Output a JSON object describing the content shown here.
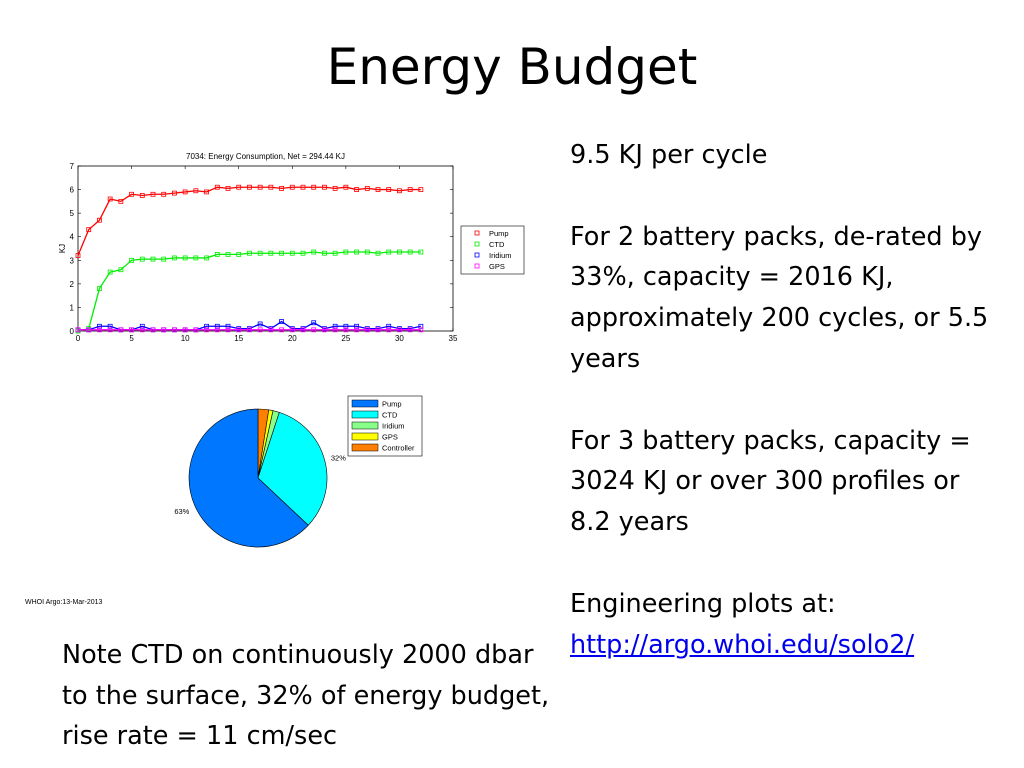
{
  "slide": {
    "title": "Energy Budget",
    "stamp": "WHOI Argo:13-Mar-2013",
    "right_text": {
      "line1": "9.5 KJ per cycle",
      "line2": "For 2 battery packs, de-rated by 33%, capacity = 2016 KJ, approximately 200 cycles, or 5.5 years",
      "line3": "For 3 battery packs, capacity = 3024 KJ or over 300 profiles or 8.2 years",
      "line4": "Engineering plots at:",
      "link": "http://argo.whoi.edu/solo2/"
    },
    "note_text": "Note CTD on continuously 2000 dbar to the surface, 32% of energy budget, rise rate = 11 cm/sec"
  },
  "chart_data": [
    {
      "type": "line",
      "title": "7034: Energy Consumption,  Net = 294.44 KJ",
      "xlabel": "",
      "ylabel": "KJ",
      "xlim": [
        0,
        35
      ],
      "ylim": [
        0,
        7
      ],
      "xticks": [
        0,
        5,
        10,
        15,
        20,
        25,
        30,
        35
      ],
      "yticks": [
        0,
        1,
        2,
        3,
        4,
        5,
        6,
        7
      ],
      "grid": false,
      "legend_position": "right",
      "x": [
        0,
        1,
        2,
        3,
        4,
        5,
        6,
        7,
        8,
        9,
        10,
        11,
        12,
        13,
        14,
        15,
        16,
        17,
        18,
        19,
        20,
        21,
        22,
        23,
        24,
        25,
        26,
        27,
        28,
        29,
        30,
        31,
        32
      ],
      "series": [
        {
          "name": "Pump",
          "color": "#ff0000",
          "values": [
            3.2,
            4.3,
            4.7,
            5.6,
            5.5,
            5.8,
            5.75,
            5.8,
            5.8,
            5.85,
            5.9,
            5.95,
            5.9,
            6.1,
            6.05,
            6.1,
            6.1,
            6.1,
            6.1,
            6.05,
            6.1,
            6.1,
            6.1,
            6.1,
            6.05,
            6.1,
            6.0,
            6.05,
            6.0,
            6.0,
            5.95,
            6.0,
            6.0
          ]
        },
        {
          "name": "CTD",
          "color": "#00ee00",
          "values": [
            0.0,
            0.1,
            1.8,
            2.5,
            2.6,
            3.0,
            3.05,
            3.05,
            3.05,
            3.1,
            3.1,
            3.1,
            3.1,
            3.25,
            3.25,
            3.25,
            3.3,
            3.3,
            3.3,
            3.3,
            3.3,
            3.3,
            3.35,
            3.3,
            3.3,
            3.35,
            3.35,
            3.35,
            3.3,
            3.35,
            3.35,
            3.35,
            3.35
          ]
        },
        {
          "name": "Iridium",
          "color": "#0000ff",
          "values": [
            0.05,
            0.05,
            0.2,
            0.2,
            0.05,
            0.05,
            0.2,
            0.05,
            0.05,
            0.05,
            0.05,
            0.05,
            0.2,
            0.2,
            0.2,
            0.1,
            0.1,
            0.3,
            0.1,
            0.4,
            0.1,
            0.1,
            0.35,
            0.1,
            0.2,
            0.2,
            0.2,
            0.1,
            0.1,
            0.2,
            0.1,
            0.1,
            0.2
          ]
        },
        {
          "name": "GPS",
          "color": "#ff00ff",
          "values": [
            0.05,
            0.05,
            0.05,
            0.05,
            0.05,
            0.05,
            0.05,
            0.05,
            0.05,
            0.05,
            0.05,
            0.05,
            0.05,
            0.05,
            0.05,
            0.05,
            0.05,
            0.05,
            0.05,
            0.05,
            0.05,
            0.05,
            0.05,
            0.05,
            0.05,
            0.05,
            0.05,
            0.05,
            0.05,
            0.05,
            0.05,
            0.05,
            0.05
          ]
        }
      ]
    },
    {
      "type": "pie",
      "legend_position": "top-right",
      "slices": [
        {
          "name": "Pump",
          "value": 63,
          "label": "63%",
          "color": "#0077ff"
        },
        {
          "name": "CTD",
          "value": 32,
          "label": "32%",
          "color": "#00ffff"
        },
        {
          "name": "Iridium",
          "value": 1.5,
          "label": "",
          "color": "#88ff88"
        },
        {
          "name": "GPS",
          "value": 1.0,
          "label": "",
          "color": "#ffff00"
        },
        {
          "name": "Controller",
          "value": 2.5,
          "label": "",
          "color": "#ff8000"
        }
      ]
    }
  ]
}
